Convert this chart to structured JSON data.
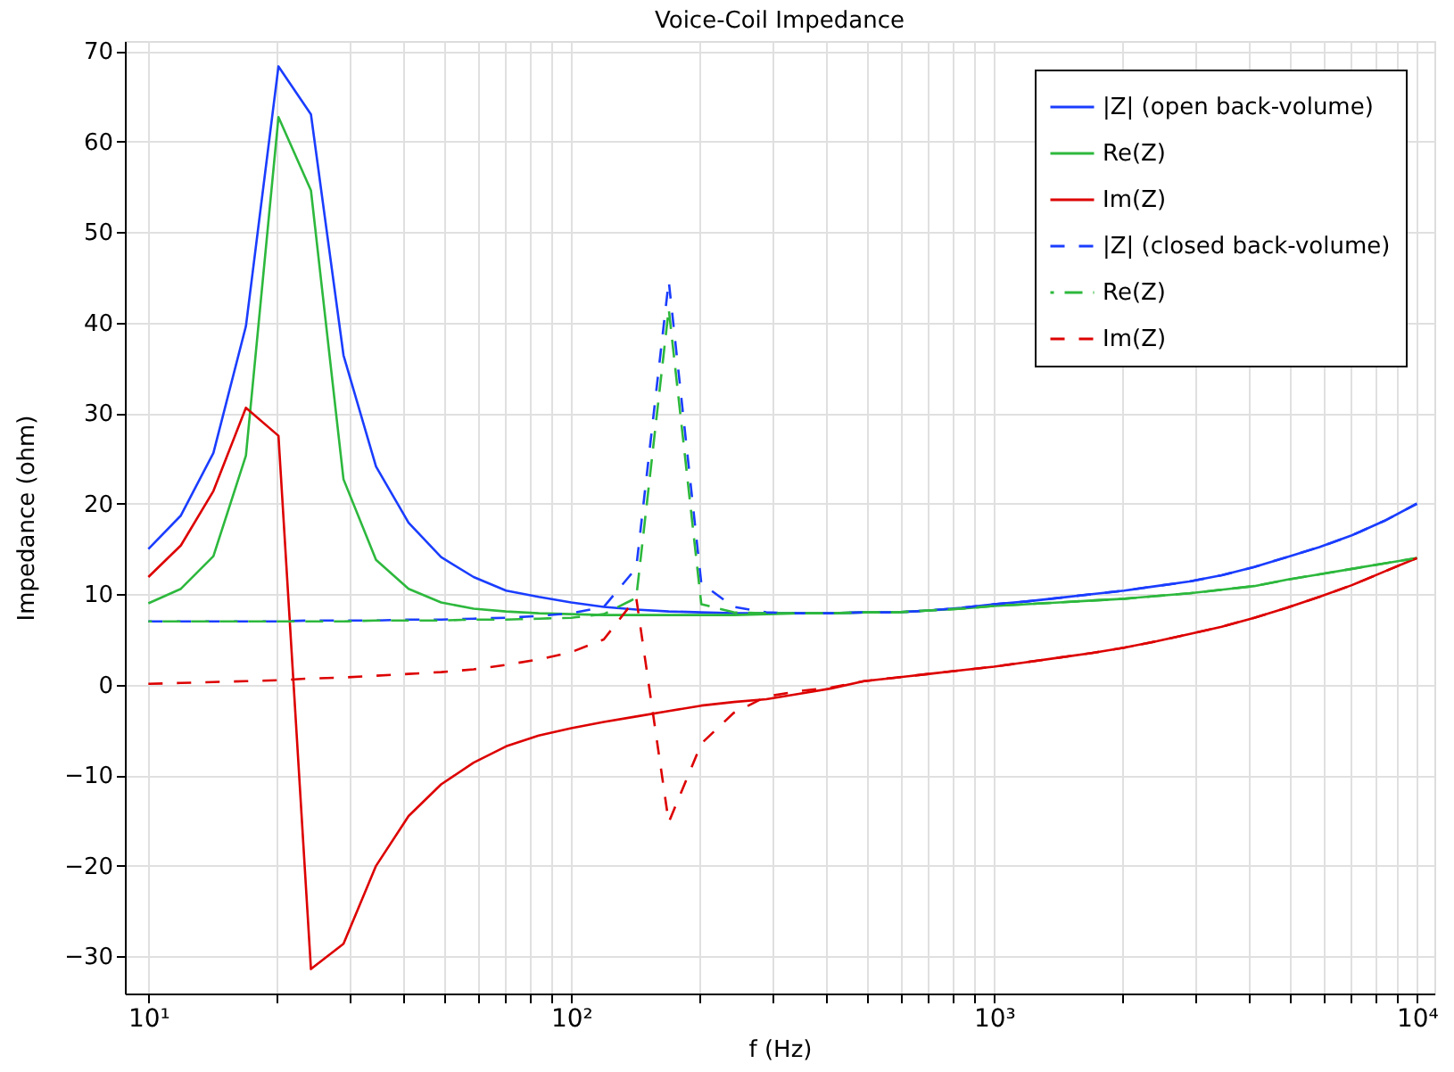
{
  "chart_data": {
    "type": "line",
    "title": "Voice-Coil Impedance",
    "xlabel": "f (Hz)",
    "ylabel": "Impedance (ohm)",
    "log": "x",
    "grid": true,
    "legend": "top right",
    "xlim": [
      8.8,
      11000
    ],
    "ylim": [
      -34.1,
      71.1
    ],
    "xticks": [
      {
        "value": 10,
        "label": "10¹"
      },
      {
        "value": 20,
        "label": null
      },
      {
        "value": 30,
        "label": null
      },
      {
        "value": 40,
        "label": null
      },
      {
        "value": 50,
        "label": null
      },
      {
        "value": 60,
        "label": null
      },
      {
        "value": 70,
        "label": null
      },
      {
        "value": 80,
        "label": null
      },
      {
        "value": 90,
        "label": null
      },
      {
        "value": 100,
        "label": "10²"
      },
      {
        "value": 200,
        "label": null
      },
      {
        "value": 300,
        "label": null
      },
      {
        "value": 400,
        "label": null
      },
      {
        "value": 500,
        "label": null
      },
      {
        "value": 600,
        "label": null
      },
      {
        "value": 700,
        "label": null
      },
      {
        "value": 800,
        "label": null
      },
      {
        "value": 900,
        "label": null
      },
      {
        "value": 1000,
        "label": "10³"
      },
      {
        "value": 2000,
        "label": null
      },
      {
        "value": 3000,
        "label": null
      },
      {
        "value": 4000,
        "label": null
      },
      {
        "value": 5000,
        "label": null
      },
      {
        "value": 6000,
        "label": null
      },
      {
        "value": 7000,
        "label": null
      },
      {
        "value": 8000,
        "label": null
      },
      {
        "value": 9000,
        "label": null
      },
      {
        "value": 10000,
        "label": "10⁴"
      }
    ],
    "yticks": [
      -30,
      -20,
      -10,
      0,
      10,
      20,
      30,
      40,
      50,
      60,
      70
    ],
    "x": [
      10,
      11.94,
      14.25,
      17.01,
      20.31,
      24.24,
      28.94,
      34.55,
      41.25,
      49.24,
      58.78,
      70.17,
      83.77,
      100,
      119.4,
      142.5,
      170.1,
      203.1,
      242.4,
      289.4,
      345.5,
      412.5,
      492.4,
      587.8,
      701.7,
      837.7,
      1000,
      1194,
      1425,
      1701,
      2031,
      2424,
      2894,
      3455,
      4125,
      4924,
      5878,
      7017,
      8377,
      10000
    ],
    "series": [
      {
        "name": "|Z| (open back-volume)",
        "color": "#1a3dff",
        "line_style": "solid",
        "values": [
          15.0,
          18.7,
          25.6,
          39.6,
          68.3,
          63.0,
          36.4,
          24.1,
          17.9,
          14.1,
          11.9,
          10.4,
          9.7,
          9.1,
          8.6,
          8.3,
          8.1,
          8.0,
          7.9,
          7.9,
          7.9,
          7.9,
          8.0,
          8.0,
          8.2,
          8.5,
          8.9,
          9.2,
          9.6,
          10.0,
          10.4,
          10.9,
          11.4,
          12.1,
          13.0,
          14.1,
          15.2,
          16.5,
          18.1,
          20.0
        ]
      },
      {
        "name": "Re(Z)",
        "color": "#2db83d",
        "line_style": "solid",
        "values": [
          9.0,
          10.6,
          14.2,
          25.3,
          62.7,
          54.6,
          22.7,
          13.8,
          10.6,
          9.1,
          8.4,
          8.1,
          7.9,
          7.8,
          7.7,
          7.7,
          7.7,
          7.7,
          7.7,
          7.8,
          7.9,
          7.9,
          8.0,
          8.0,
          8.2,
          8.4,
          8.7,
          8.9,
          9.1,
          9.3,
          9.5,
          9.8,
          10.1,
          10.5,
          10.9,
          11.6,
          12.2,
          12.8,
          13.4,
          14.0
        ]
      },
      {
        "name": "Im(Z)",
        "color": "#dd0000",
        "line_style": "solid",
        "values": [
          11.9,
          15.4,
          21.4,
          30.6,
          27.5,
          -31.4,
          -28.6,
          -20.0,
          -14.5,
          -11.0,
          -8.6,
          -6.8,
          -5.6,
          -4.8,
          -4.1,
          -3.5,
          -2.9,
          -2.3,
          -1.9,
          -1.6,
          -1.0,
          -0.4,
          0.4,
          0.8,
          1.2,
          1.6,
          2.0,
          2.5,
          3.0,
          3.5,
          4.1,
          4.8,
          5.6,
          6.4,
          7.4,
          8.5,
          9.7,
          11.0,
          12.5,
          14.0
        ]
      },
      {
        "name": "|Z| (closed back-volume)",
        "color": "#1a3dff",
        "line_style": "dashed",
        "values": [
          7.0,
          7.0,
          7.0,
          7.0,
          7.0,
          7.1,
          7.1,
          7.1,
          7.2,
          7.2,
          7.3,
          7.4,
          7.6,
          7.9,
          8.6,
          12.9,
          44.6,
          11.2,
          8.6,
          8.0,
          7.9,
          7.9,
          8.0,
          8.0,
          8.2,
          8.5,
          8.9,
          9.2,
          9.6,
          10.0,
          10.4,
          10.9,
          11.4,
          12.1,
          13.0,
          14.1,
          15.2,
          16.5,
          18.1,
          20.0
        ]
      },
      {
        "name": "Re(Z)",
        "color": "#2db83d",
        "line_style": "dashed",
        "values": [
          7.0,
          7.0,
          7.0,
          7.0,
          7.0,
          7.0,
          7.0,
          7.1,
          7.1,
          7.1,
          7.2,
          7.2,
          7.3,
          7.4,
          7.8,
          9.6,
          41.5,
          8.9,
          8.0,
          7.9,
          7.9,
          7.9,
          8.0,
          8.0,
          8.2,
          8.4,
          8.7,
          8.9,
          9.1,
          9.3,
          9.5,
          9.8,
          10.1,
          10.5,
          10.9,
          11.6,
          12.2,
          12.8,
          13.4,
          14.0
        ]
      },
      {
        "name": "Im(Z)",
        "color": "#dd0000",
        "line_style": "dashed",
        "values": [
          0.1,
          0.2,
          0.3,
          0.4,
          0.5,
          0.7,
          0.8,
          1.0,
          1.2,
          1.4,
          1.7,
          2.2,
          2.8,
          3.6,
          5.0,
          9.6,
          -15.2,
          -6.5,
          -3.1,
          -1.3,
          -0.7,
          -0.3,
          0.4,
          0.8,
          1.2,
          1.6,
          2.0,
          2.5,
          3.0,
          3.5,
          4.1,
          4.8,
          5.6,
          6.4,
          7.4,
          8.5,
          9.7,
          11.0,
          12.5,
          14.0
        ]
      }
    ]
  }
}
